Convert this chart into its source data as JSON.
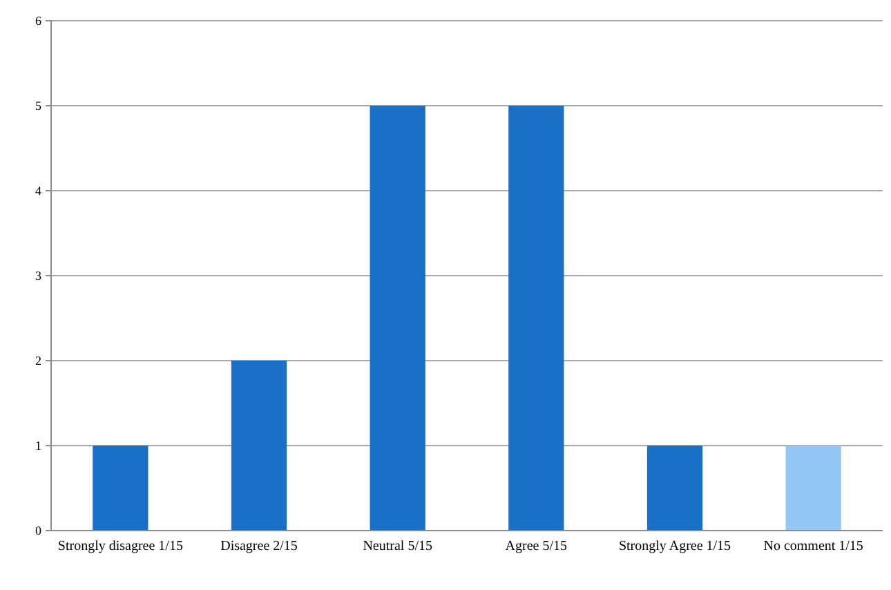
{
  "chart_data": {
    "type": "bar",
    "categories": [
      "Strongly disagree 1/15",
      "Disagree 2/15",
      "Neutral 5/15",
      "Agree 5/15",
      "Strongly Agree 1/15",
      "No comment 1/15"
    ],
    "values": [
      1,
      2,
      5,
      5,
      1,
      1
    ],
    "colors": [
      "#1a6fc6",
      "#1a6fc6",
      "#1a6fc6",
      "#1a6fc6",
      "#1a6fc6",
      "#93c6f4"
    ],
    "ylim": [
      0,
      6
    ],
    "yticks": [
      0,
      1,
      2,
      3,
      4,
      5,
      6
    ],
    "grid": "y"
  }
}
